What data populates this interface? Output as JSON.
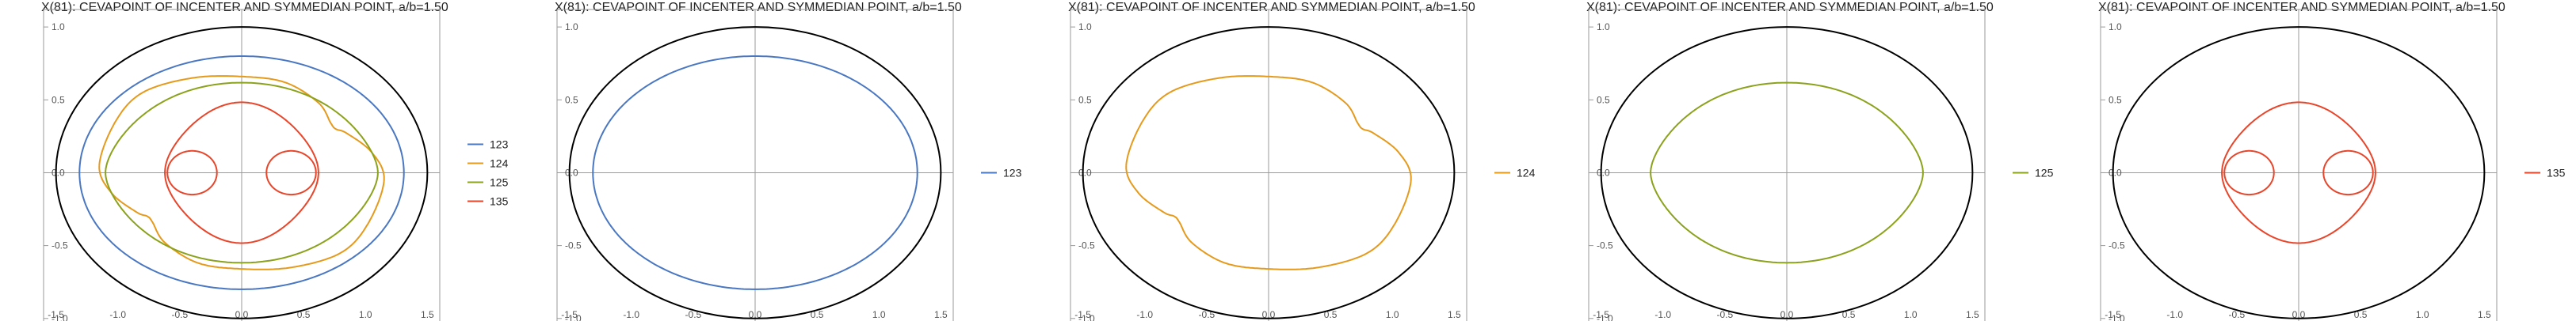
{
  "chart_data": [
    {
      "type": "line",
      "title": "X(81): CEVAPOINT OF INCENTER AND SYMMEDIAN POINT, a/b=1.50",
      "xlim": [
        -1.6,
        1.6
      ],
      "ylim": [
        -1.05,
        1.12
      ],
      "x_ticks": [
        "-1.5",
        "-1.0",
        "-0.5",
        "0.0",
        "0.5",
        "1.0",
        "1.5"
      ],
      "y_ticks": [
        "-1.0",
        "-0.5",
        "0.0",
        "0.5",
        "1.0"
      ],
      "grid": false,
      "legend": "right",
      "reference_ellipse": {
        "a": 1.5,
        "b": 1.0,
        "color": "#000000"
      },
      "series": [
        {
          "name": "123",
          "color": "#4a77c2",
          "shape": "ellipse",
          "a": 1.31,
          "b": 0.8
        },
        {
          "name": "124",
          "color": "#e59a1c",
          "shape": "blob"
        },
        {
          "name": "125",
          "color": "#8ba21c",
          "shape": "peanut"
        },
        {
          "name": "135",
          "color": "#e8452a",
          "shape": "limacon"
        }
      ]
    },
    {
      "type": "line",
      "title": "X(81): CEVAPOINT OF INCENTER AND SYMMEDIAN POINT, a/b=1.50",
      "xlim": [
        -1.6,
        1.6
      ],
      "ylim": [
        -1.05,
        1.12
      ],
      "x_ticks": [
        "-1.5",
        "-1.0",
        "-0.5",
        "0.0",
        "0.5",
        "1.0",
        "1.5"
      ],
      "y_ticks": [
        "-1.0",
        "-0.5",
        "0.0",
        "0.5",
        "1.0"
      ],
      "grid": false,
      "legend": "right",
      "reference_ellipse": {
        "a": 1.5,
        "b": 1.0,
        "color": "#000000"
      },
      "series": [
        {
          "name": "123",
          "color": "#4a77c2",
          "shape": "ellipse",
          "a": 1.31,
          "b": 0.8
        }
      ]
    },
    {
      "type": "line",
      "title": "X(81): CEVAPOINT OF INCENTER AND SYMMEDIAN POINT, a/b=1.50",
      "xlim": [
        -1.6,
        1.6
      ],
      "ylim": [
        -1.05,
        1.12
      ],
      "x_ticks": [
        "-1.5",
        "-1.0",
        "-0.5",
        "0.0",
        "0.5",
        "1.0",
        "1.5"
      ],
      "y_ticks": [
        "-1.0",
        "-0.5",
        "0.0",
        "0.5",
        "1.0"
      ],
      "grid": false,
      "legend": "right",
      "reference_ellipse": {
        "a": 1.5,
        "b": 1.0,
        "color": "#000000"
      },
      "series": [
        {
          "name": "124",
          "color": "#e59a1c",
          "shape": "blob"
        }
      ]
    },
    {
      "type": "line",
      "title": "X(81): CEVAPOINT OF INCENTER AND SYMMEDIAN POINT, a/b=1.50",
      "xlim": [
        -1.6,
        1.6
      ],
      "ylim": [
        -1.05,
        1.12
      ],
      "x_ticks": [
        "-1.5",
        "-1.0",
        "-0.5",
        "0.0",
        "0.5",
        "1.0",
        "1.5"
      ],
      "y_ticks": [
        "-1.0",
        "-0.5",
        "0.0",
        "0.5",
        "1.0"
      ],
      "grid": false,
      "legend": "right",
      "reference_ellipse": {
        "a": 1.5,
        "b": 1.0,
        "color": "#000000"
      },
      "series": [
        {
          "name": "125",
          "color": "#8ba21c",
          "shape": "peanut"
        }
      ]
    },
    {
      "type": "line",
      "title": "X(81): CEVAPOINT OF INCENTER AND SYMMEDIAN POINT, a/b=1.50",
      "xlim": [
        -1.6,
        1.6
      ],
      "ylim": [
        -1.05,
        1.12
      ],
      "x_ticks": [
        "-1.5",
        "-1.0",
        "-0.5",
        "0.0",
        "0.5",
        "1.0",
        "1.5"
      ],
      "y_ticks": [
        "-1.0",
        "-0.5",
        "0.0",
        "0.5",
        "1.0"
      ],
      "grid": false,
      "legend": "right",
      "reference_ellipse": {
        "a": 1.5,
        "b": 1.0,
        "color": "#000000"
      },
      "series": [
        {
          "name": "135",
          "color": "#e8452a",
          "shape": "limacon"
        }
      ]
    }
  ]
}
